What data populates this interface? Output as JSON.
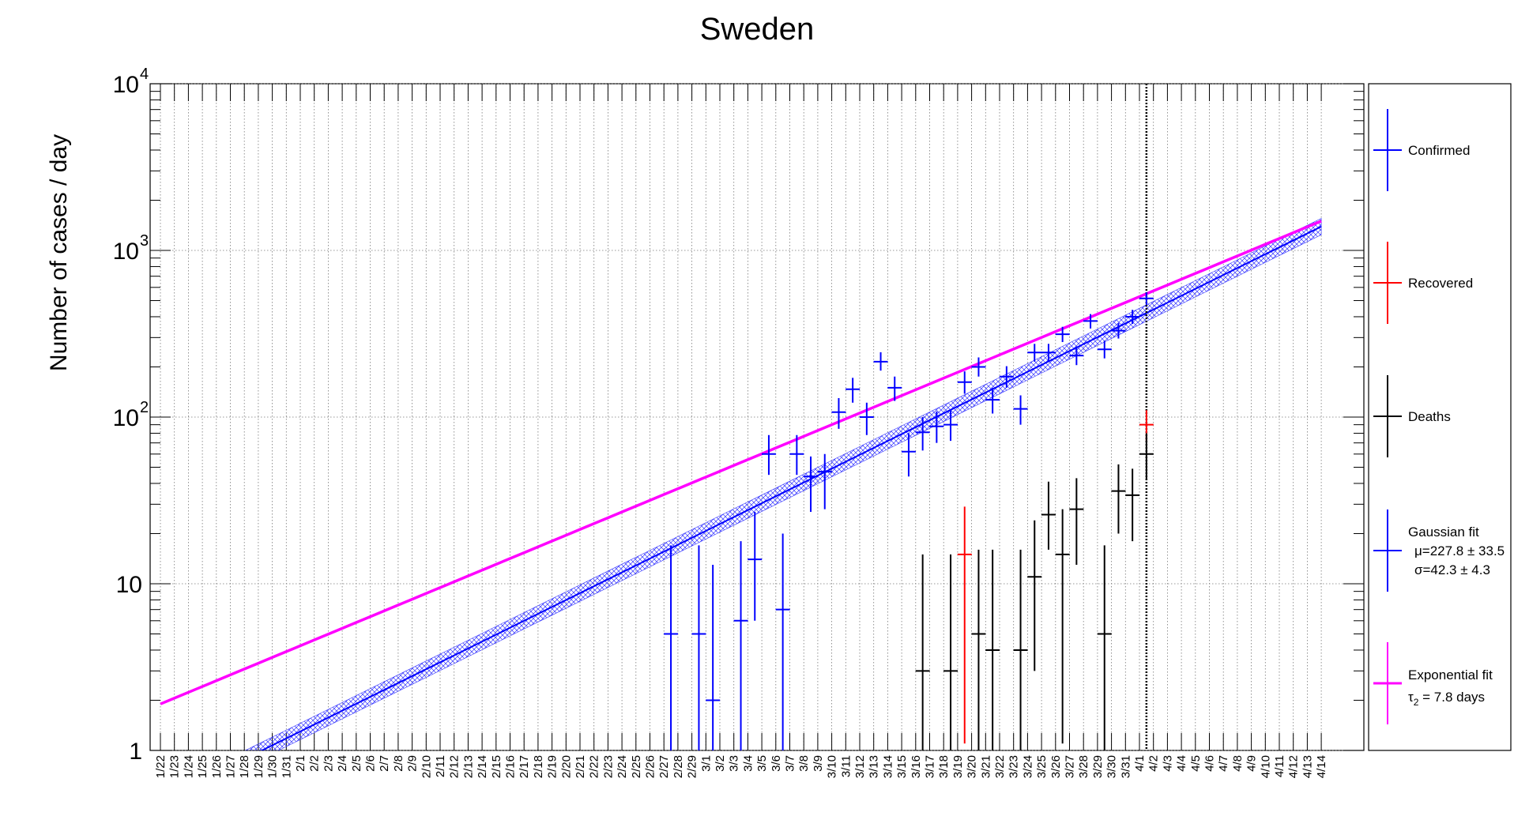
{
  "chart_data": {
    "type": "scatter",
    "title": "Sweden",
    "ylabel": "Number of cases / day",
    "xlabel": "",
    "yscale": "log",
    "ylim": [
      1,
      10000
    ],
    "y_ticks": [
      {
        "value": 1,
        "base": "1",
        "exp": ""
      },
      {
        "value": 10,
        "base": "10",
        "exp": ""
      },
      {
        "value": 100,
        "base": "10",
        "exp": "2"
      },
      {
        "value": 1000,
        "base": "10",
        "exp": "3"
      },
      {
        "value": 10000,
        "base": "10",
        "exp": "4"
      }
    ],
    "grid": true,
    "legend_position": "right",
    "categories": [
      "1/22",
      "1/23",
      "1/24",
      "1/25",
      "1/26",
      "1/27",
      "1/28",
      "1/29",
      "1/30",
      "1/31",
      "2/1",
      "2/2",
      "2/3",
      "2/4",
      "2/5",
      "2/6",
      "2/7",
      "2/8",
      "2/9",
      "2/10",
      "2/11",
      "2/12",
      "2/13",
      "2/14",
      "2/15",
      "2/16",
      "2/17",
      "2/18",
      "2/19",
      "2/20",
      "2/21",
      "2/22",
      "2/23",
      "2/24",
      "2/25",
      "2/26",
      "2/27",
      "2/28",
      "2/29",
      "3/1",
      "3/2",
      "3/3",
      "3/4",
      "3/5",
      "3/6",
      "3/7",
      "3/8",
      "3/9",
      "3/10",
      "3/11",
      "3/12",
      "3/13",
      "3/14",
      "3/15",
      "3/16",
      "3/17",
      "3/18",
      "3/19",
      "3/20",
      "3/21",
      "3/22",
      "3/23",
      "3/24",
      "3/25",
      "3/26",
      "3/27",
      "3/28",
      "3/29",
      "3/30",
      "3/31",
      "4/1",
      "4/2",
      "4/3",
      "4/4",
      "4/5",
      "4/6",
      "4/7",
      "4/8",
      "4/9",
      "4/10",
      "4/11",
      "4/12",
      "4/13",
      "4/14"
    ],
    "marker_line_at": "4/1",
    "series": [
      {
        "name": "Confirmed",
        "color": "#0000ff",
        "points": [
          {
            "x": "2/27",
            "y": 5,
            "lo": 1,
            "hi": 17
          },
          {
            "x": "2/29",
            "y": 5,
            "lo": 1,
            "hi": 17
          },
          {
            "x": "3/1",
            "y": 2,
            "lo": 1,
            "hi": 13
          },
          {
            "x": "3/3",
            "y": 6,
            "lo": 1,
            "hi": 18
          },
          {
            "x": "3/4",
            "y": 14,
            "lo": 6,
            "hi": 27
          },
          {
            "x": "3/5",
            "y": 60,
            "lo": 45,
            "hi": 78
          },
          {
            "x": "3/6",
            "y": 7,
            "lo": 1,
            "hi": 20
          },
          {
            "x": "3/7",
            "y": 60,
            "lo": 45,
            "hi": 78
          },
          {
            "x": "3/8",
            "y": 44,
            "lo": 27,
            "hi": 58
          },
          {
            "x": "3/9",
            "y": 47,
            "lo": 28,
            "hi": 60
          },
          {
            "x": "3/10",
            "y": 107,
            "lo": 85,
            "hi": 130
          },
          {
            "x": "3/11",
            "y": 147,
            "lo": 122,
            "hi": 172
          },
          {
            "x": "3/12",
            "y": 100,
            "lo": 78,
            "hi": 122
          },
          {
            "x": "3/13",
            "y": 215,
            "lo": 190,
            "hi": 245
          },
          {
            "x": "3/14",
            "y": 150,
            "lo": 125,
            "hi": 175
          },
          {
            "x": "3/15",
            "y": 62,
            "lo": 44,
            "hi": 80
          },
          {
            "x": "3/16",
            "y": 81,
            "lo": 63,
            "hi": 100
          },
          {
            "x": "3/17",
            "y": 88,
            "lo": 70,
            "hi": 108
          },
          {
            "x": "3/18",
            "y": 90,
            "lo": 72,
            "hi": 110
          },
          {
            "x": "3/19",
            "y": 162,
            "lo": 138,
            "hi": 188
          },
          {
            "x": "3/20",
            "y": 200,
            "lo": 175,
            "hi": 228
          },
          {
            "x": "3/21",
            "y": 127,
            "lo": 105,
            "hi": 150
          },
          {
            "x": "3/22",
            "y": 175,
            "lo": 150,
            "hi": 202
          },
          {
            "x": "3/23",
            "y": 112,
            "lo": 90,
            "hi": 135
          },
          {
            "x": "3/24",
            "y": 244,
            "lo": 215,
            "hi": 275
          },
          {
            "x": "3/25",
            "y": 244,
            "lo": 215,
            "hi": 275
          },
          {
            "x": "3/26",
            "y": 314,
            "lo": 282,
            "hi": 348
          },
          {
            "x": "3/27",
            "y": 234,
            "lo": 205,
            "hi": 265
          },
          {
            "x": "3/28",
            "y": 377,
            "lo": 340,
            "hi": 415
          },
          {
            "x": "3/29",
            "y": 255,
            "lo": 225,
            "hi": 287
          },
          {
            "x": "3/30",
            "y": 330,
            "lo": 296,
            "hi": 366
          },
          {
            "x": "3/31",
            "y": 400,
            "lo": 362,
            "hi": 440
          },
          {
            "x": "4/1",
            "y": 515,
            "lo": 472,
            "hi": 560
          }
        ]
      },
      {
        "name": "Recovered",
        "color": "#ff0000",
        "points": [
          {
            "x": "3/19",
            "y": 15,
            "lo": 1.1,
            "hi": 29
          },
          {
            "x": "4/1",
            "y": 90,
            "lo": 72,
            "hi": 110
          }
        ]
      },
      {
        "name": "Deaths",
        "color": "#000000",
        "points": [
          {
            "x": "3/16",
            "y": 3,
            "lo": 1,
            "hi": 15
          },
          {
            "x": "3/18",
            "y": 3,
            "lo": 1,
            "hi": 15
          },
          {
            "x": "3/20",
            "y": 5,
            "lo": 1,
            "hi": 16
          },
          {
            "x": "3/21",
            "y": 4,
            "lo": 1,
            "hi": 16
          },
          {
            "x": "3/23",
            "y": 4,
            "lo": 1,
            "hi": 16
          },
          {
            "x": "3/24",
            "y": 11,
            "lo": 3,
            "hi": 24
          },
          {
            "x": "3/25",
            "y": 26,
            "lo": 16,
            "hi": 41
          },
          {
            "x": "3/26",
            "y": 15,
            "lo": 1.1,
            "hi": 28
          },
          {
            "x": "3/27",
            "y": 28,
            "lo": 13,
            "hi": 43
          },
          {
            "x": "3/29",
            "y": 5,
            "lo": 1,
            "hi": 17
          },
          {
            "x": "3/30",
            "y": 36,
            "lo": 20,
            "hi": 52
          },
          {
            "x": "3/31",
            "y": 34,
            "lo": 18,
            "hi": 49
          },
          {
            "x": "4/1",
            "y": 60,
            "lo": 42,
            "hi": 80
          }
        ]
      }
    ],
    "fits": [
      {
        "name": "Gaussian fit",
        "color": "#0000ff",
        "band_color": "#3333ff",
        "mu_text": "μ=227.8 ± 33.5",
        "sigma_text": "σ=42.3 ± 4.3",
        "from": "1/22",
        "to": "4/14",
        "y_start": 0.5,
        "y_end": 1390,
        "band_ratio": 1.12
      },
      {
        "name": "Exponential fit",
        "color": "#ff00ff",
        "tau_symbol": "τ",
        "tau_sub": "2",
        "tau_text": " = 7.8 days",
        "from": "1/22",
        "to": "4/14",
        "y_start": 1.9,
        "y_end": 1500
      }
    ]
  }
}
